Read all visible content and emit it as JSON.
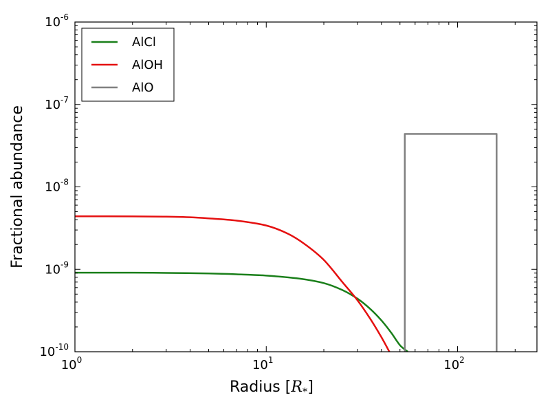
{
  "chart_data": {
    "type": "line",
    "title": "",
    "xlabel": {
      "text": "Radius [",
      "symbol": "R",
      "subscript": "*",
      "close": "]"
    },
    "ylabel": "Fractional abundance",
    "xscale": "log",
    "yscale": "log",
    "xlim": [
      1,
      260
    ],
    "ylim": [
      1e-10,
      1e-06
    ],
    "grid": false,
    "legend_position": "top-left",
    "x_ticks": [
      {
        "value": 1,
        "base": "10",
        "exp": "0"
      },
      {
        "value": 10,
        "base": "10",
        "exp": "1"
      },
      {
        "value": 100,
        "base": "10",
        "exp": "2"
      }
    ],
    "y_ticks": [
      {
        "value": 1e-10,
        "base": "10",
        "exp": "-10"
      },
      {
        "value": 1e-09,
        "base": "10",
        "exp": "-9"
      },
      {
        "value": 1e-08,
        "base": "10",
        "exp": "-8"
      },
      {
        "value": 1e-07,
        "base": "10",
        "exp": "-7"
      },
      {
        "value": 1e-06,
        "base": "10",
        "exp": "-6"
      }
    ],
    "series": [
      {
        "name": "AlCl",
        "color": "#1a7f1a",
        "points": [
          [
            1,
            9.1e-10
          ],
          [
            2,
            9.1e-10
          ],
          [
            3,
            9.05e-10
          ],
          [
            5,
            8.9e-10
          ],
          [
            7,
            8.7e-10
          ],
          [
            10,
            8.4e-10
          ],
          [
            15,
            7.7e-10
          ],
          [
            20,
            6.8e-10
          ],
          [
            25,
            5.6e-10
          ],
          [
            30,
            4.4e-10
          ],
          [
            35,
            3.3e-10
          ],
          [
            40,
            2.4e-10
          ],
          [
            45,
            1.7e-10
          ],
          [
            50,
            1.2e-10
          ],
          [
            55,
            1e-10
          ]
        ]
      },
      {
        "name": "AlOH",
        "color": "#e51010",
        "points": [
          [
            1,
            4.4e-09
          ],
          [
            2,
            4.38e-09
          ],
          [
            3,
            4.35e-09
          ],
          [
            4,
            4.28e-09
          ],
          [
            5,
            4.15e-09
          ],
          [
            7,
            3.9e-09
          ],
          [
            10,
            3.4e-09
          ],
          [
            13,
            2.7e-09
          ],
          [
            16,
            2e-09
          ],
          [
            20,
            1.3e-09
          ],
          [
            25,
            7e-10
          ],
          [
            30,
            4.2e-10
          ],
          [
            35,
            2.5e-10
          ],
          [
            40,
            1.5e-10
          ],
          [
            44,
            1e-10
          ]
        ]
      },
      {
        "name": "AlO",
        "color": "#808080",
        "points": [
          [
            53,
            1e-10
          ],
          [
            53,
            4.4e-08
          ],
          [
            160,
            4.4e-08
          ],
          [
            160,
            1e-10
          ]
        ]
      }
    ]
  }
}
